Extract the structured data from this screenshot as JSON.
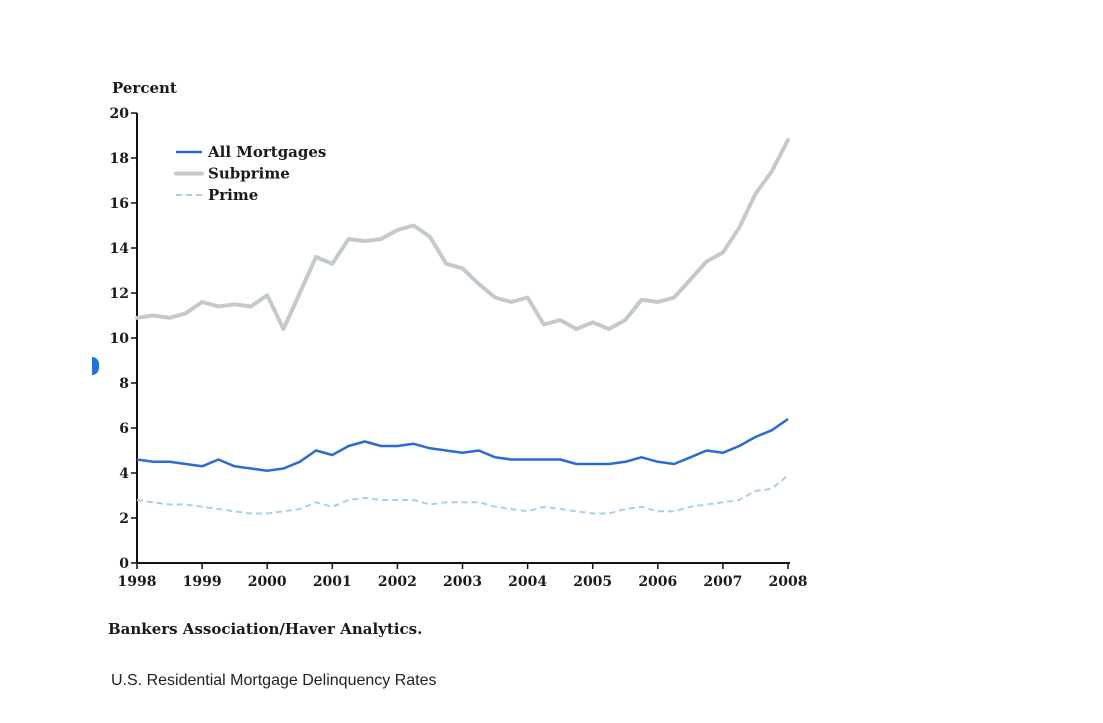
{
  "chart_data": {
    "type": "line",
    "ylabel": "Percent",
    "ylim": [
      0,
      20
    ],
    "yticks": [
      0,
      2,
      4,
      6,
      8,
      10,
      12,
      14,
      16,
      18,
      20
    ],
    "xlim": [
      1998,
      2008
    ],
    "xticks": [
      "1998",
      "1999",
      "2000",
      "2001",
      "2002",
      "2003",
      "2004",
      "2005",
      "2006",
      "2007",
      "2008"
    ],
    "legend_position": "top-left",
    "series": [
      {
        "name": "All Mortgages",
        "style": "solid",
        "color": "#2b6cd3",
        "values": [
          4.6,
          4.5,
          4.5,
          4.4,
          4.3,
          4.6,
          4.3,
          4.2,
          4.1,
          4.2,
          4.5,
          5.0,
          4.8,
          5.2,
          5.4,
          5.2,
          5.2,
          5.3,
          5.1,
          5.0,
          4.9,
          5.0,
          4.7,
          4.6,
          4.6,
          4.6,
          4.6,
          4.4,
          4.4,
          4.4,
          4.5,
          4.7,
          4.5,
          4.4,
          4.7,
          5.0,
          4.9,
          5.2,
          5.6,
          5.9,
          6.4
        ]
      },
      {
        "name": "Subprime",
        "style": "solid-thick",
        "color": "#c2cbc7",
        "values": [
          10.9,
          11.0,
          10.9,
          11.1,
          11.6,
          11.4,
          11.5,
          11.4,
          11.9,
          10.4,
          12.0,
          13.6,
          13.3,
          14.4,
          14.3,
          14.4,
          14.8,
          15.0,
          14.5,
          13.3,
          13.1,
          12.4,
          11.8,
          11.6,
          11.8,
          10.6,
          10.8,
          10.4,
          10.7,
          10.4,
          10.8,
          11.7,
          11.6,
          11.8,
          12.6,
          13.4,
          13.8,
          14.9,
          16.4,
          17.4,
          18.8
        ]
      },
      {
        "name": "Prime",
        "style": "dashed",
        "color": "#a9d0ea",
        "values": [
          2.8,
          2.7,
          2.6,
          2.6,
          2.5,
          2.4,
          2.3,
          2.2,
          2.2,
          2.3,
          2.4,
          2.7,
          2.5,
          2.8,
          2.9,
          2.8,
          2.8,
          2.8,
          2.6,
          2.7,
          2.7,
          2.7,
          2.5,
          2.4,
          2.3,
          2.5,
          2.4,
          2.3,
          2.2,
          2.2,
          2.4,
          2.5,
          2.3,
          2.3,
          2.5,
          2.6,
          2.7,
          2.8,
          3.2,
          3.3,
          3.9
        ]
      }
    ]
  },
  "labels": {
    "y_axis_title": "Percent",
    "source": "Bankers Association/Haver Analytics.",
    "caption": "U.S. Residential Mortgage Delinquency Rates"
  }
}
